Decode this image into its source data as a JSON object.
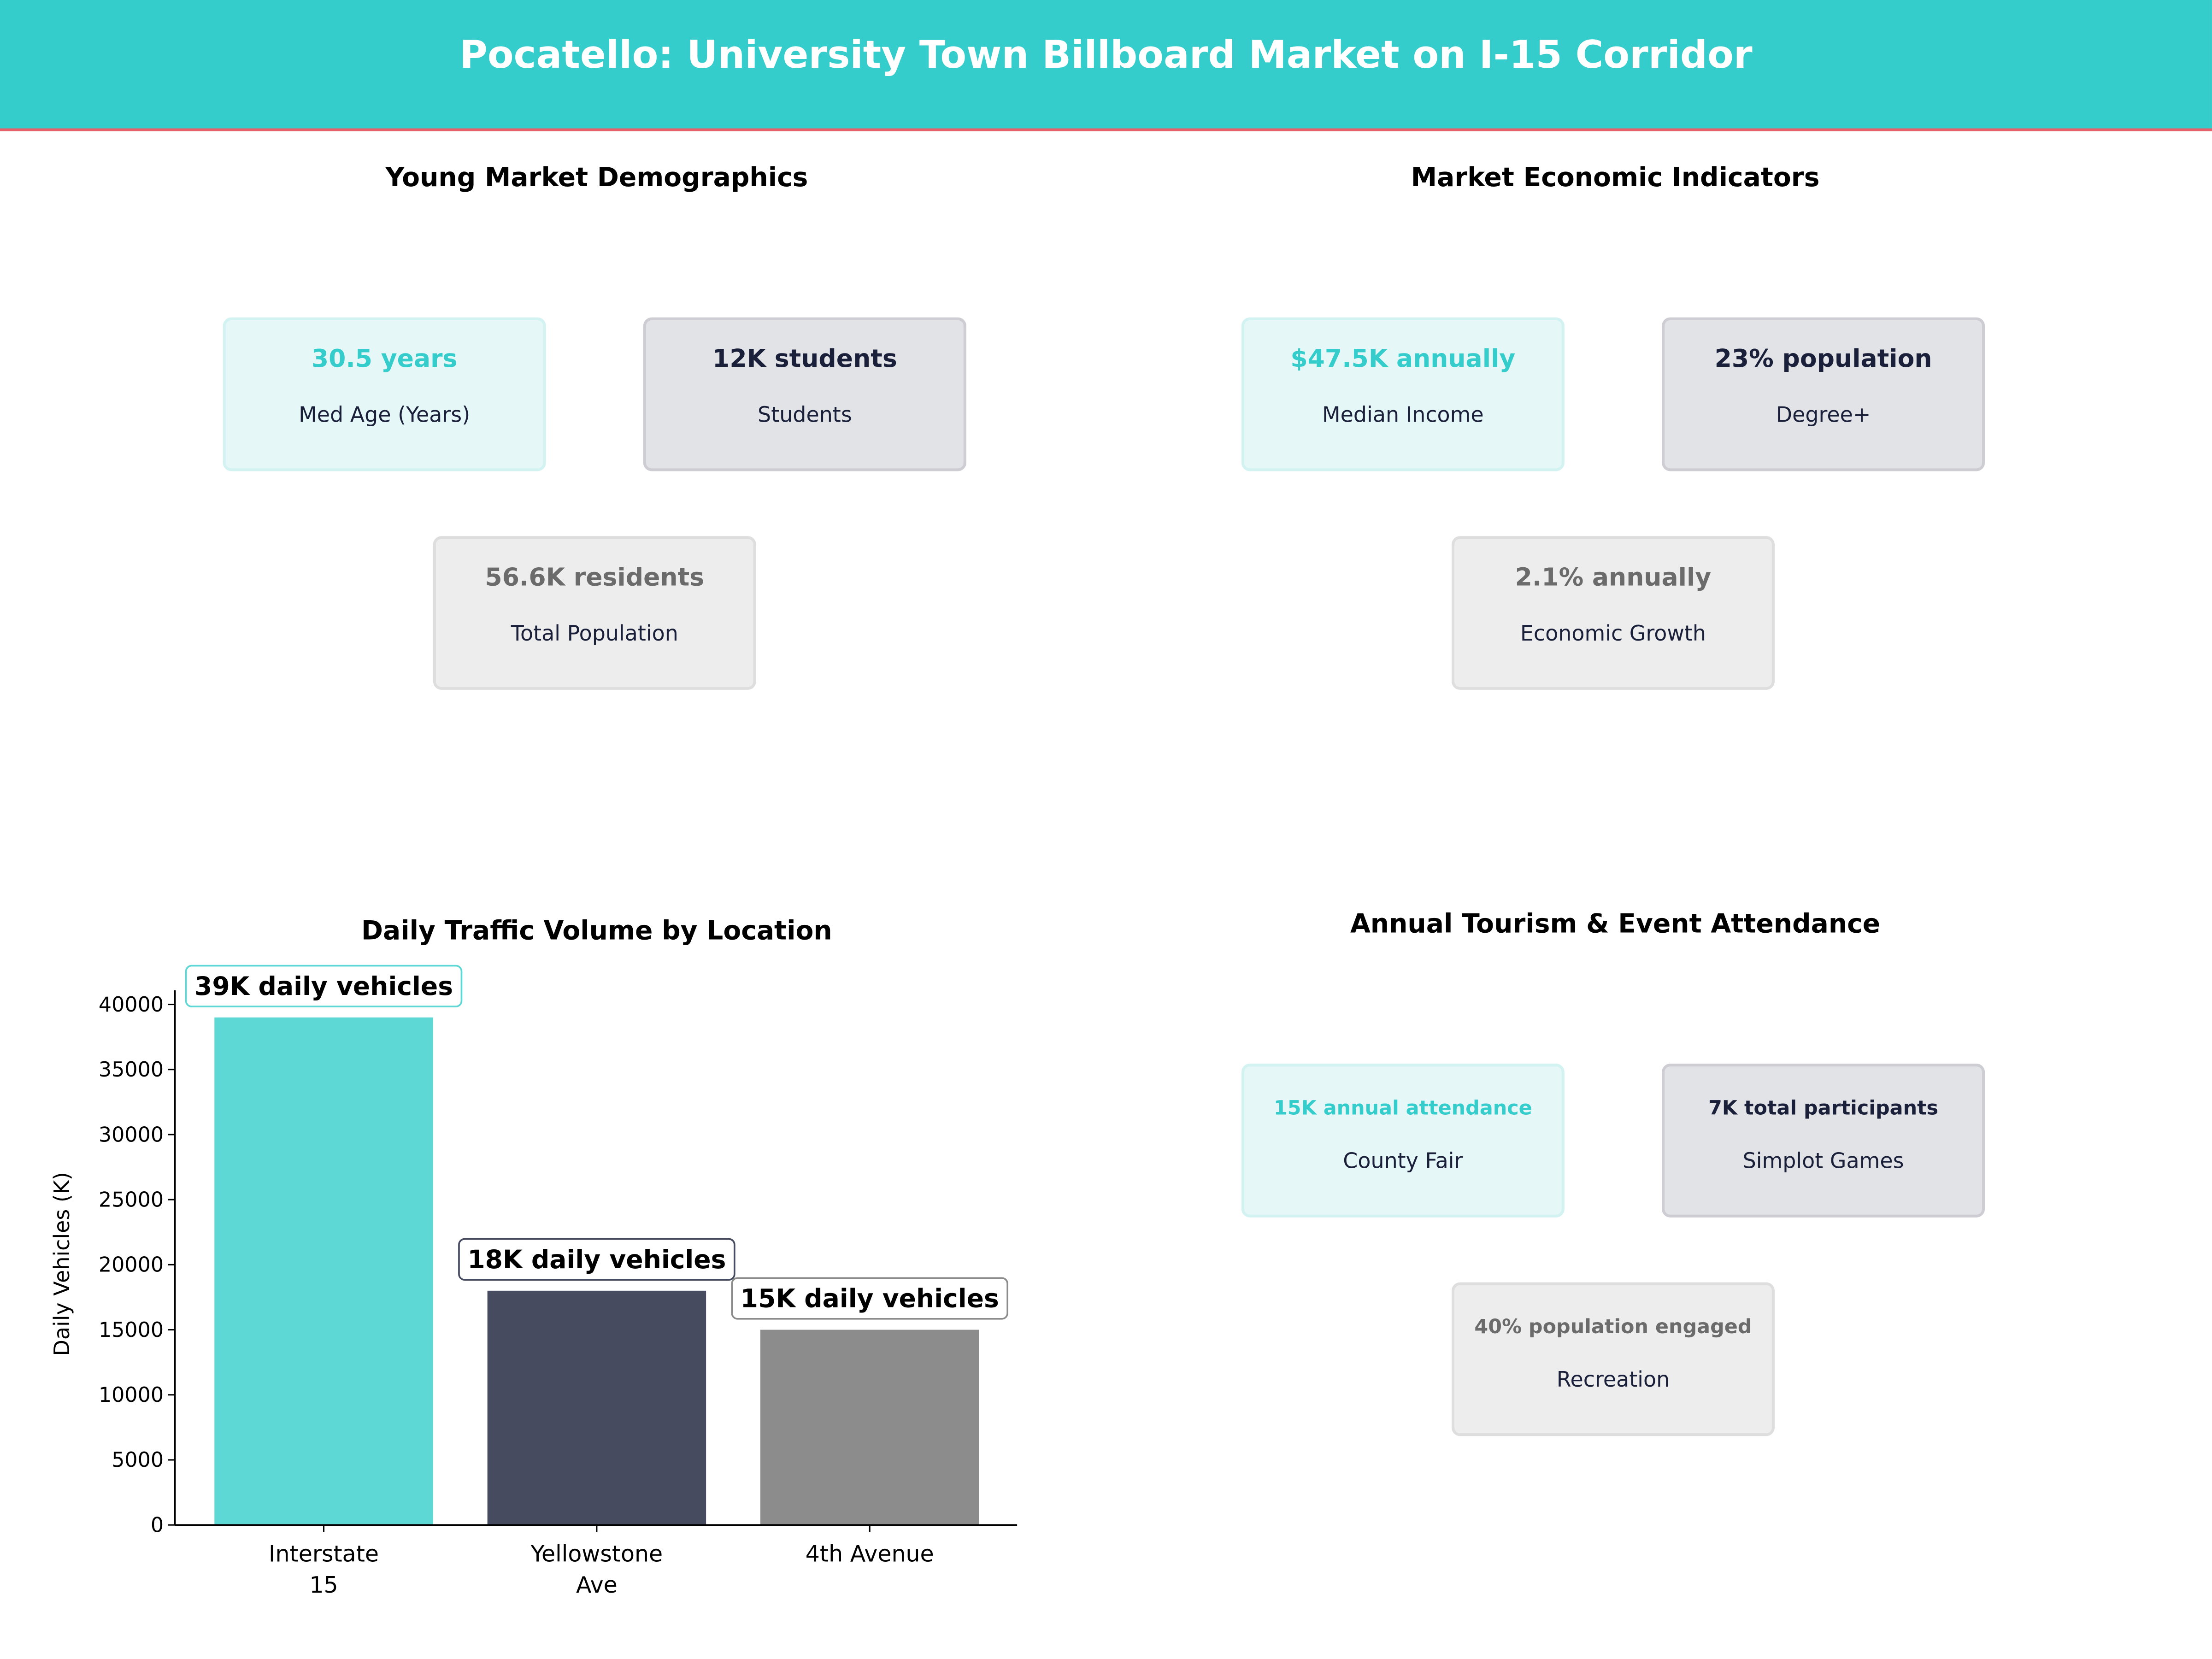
{
  "header": {
    "title": "Pocatello: University Town Billboard Market on I-15 Corridor"
  },
  "colors": {
    "teal": "#35CCCC",
    "accent_line": "#E8606A",
    "dark": "#1a1f3a",
    "gray": "#6B6B6B"
  },
  "demographics": {
    "title": "Young Market Demographics",
    "cards": [
      {
        "value": "30.5 years",
        "label": "Med Age (Years)"
      },
      {
        "value": "12K students",
        "label": "Students"
      },
      {
        "value": "56.6K residents",
        "label": "Total Population"
      }
    ]
  },
  "economics": {
    "title": "Market Economic Indicators",
    "cards": [
      {
        "value": "$47.5K annually",
        "label": "Median Income"
      },
      {
        "value": "23% population",
        "label": "Degree+"
      },
      {
        "value": "2.1% annually",
        "label": "Economic Growth"
      }
    ]
  },
  "tourism": {
    "title": "Annual Tourism & Event Attendance",
    "cards": [
      {
        "value": "15K annual attendance",
        "label": "County Fair"
      },
      {
        "value": "7K total participants",
        "label": "Simplot Games"
      },
      {
        "value": "40% population engaged",
        "label": "Recreation"
      }
    ]
  },
  "chart_data": {
    "type": "bar",
    "title": "Daily Traffic Volume by Location",
    "xlabel": "",
    "ylabel": "Daily Vehicles (K)",
    "categories": [
      "Interstate\n15",
      "Yellowstone\nAve",
      "4th Avenue"
    ],
    "values": [
      39000,
      18000,
      15000
    ],
    "data_labels": [
      "39K daily vehicles",
      "18K daily vehicles",
      "15K daily vehicles"
    ],
    "bar_colors": [
      "#5ED8D4",
      "#464B60",
      "#8C8C8C"
    ],
    "label_border_colors": [
      "#5ED8D4",
      "#464B60",
      "#8C8C8C"
    ],
    "ylim": [
      0,
      40000
    ],
    "yticks": [
      0,
      5000,
      10000,
      15000,
      20000,
      25000,
      30000,
      35000,
      40000
    ],
    "grid": false
  }
}
